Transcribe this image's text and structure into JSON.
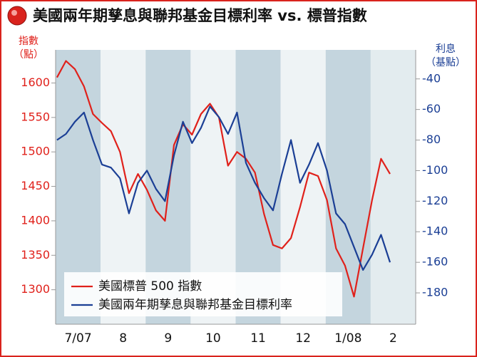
{
  "chart_data": {
    "type": "line",
    "title": "美國兩年期孳息與聯邦基金目標利率 vs. 標普指數",
    "y_label": [
      "指數",
      "（點）"
    ],
    "y2_label": [
      "利息",
      "（基點）"
    ],
    "categories": [
      "7/07",
      "8",
      "9",
      "10",
      "11",
      "12",
      "1/08",
      "2"
    ],
    "xlim": [
      0,
      8
    ],
    "x": [
      0.03,
      0.23,
      0.43,
      0.63,
      0.83,
      1.03,
      1.23,
      1.43,
      1.63,
      1.83,
      2.03,
      2.23,
      2.43,
      2.63,
      2.83,
      3.03,
      3.23,
      3.43,
      3.63,
      3.83,
      4.03,
      4.23,
      4.43,
      4.63,
      4.83,
      5.03,
      5.23,
      5.43,
      5.63,
      5.83,
      6.03,
      6.23,
      6.43,
      6.63,
      6.83,
      7.03,
      7.23,
      7.43
    ],
    "series": [
      {
        "name": "美國標普 500 指數",
        "color": "#e0211b",
        "axis": "y",
        "values": [
          1608,
          1632,
          1620,
          1595,
          1555,
          1542,
          1530,
          1500,
          1440,
          1468,
          1445,
          1415,
          1400,
          1510,
          1540,
          1525,
          1555,
          1570,
          1550,
          1480,
          1500,
          1490,
          1470,
          1410,
          1365,
          1360,
          1375,
          1420,
          1470,
          1465,
          1430,
          1360,
          1335,
          1290,
          1360,
          1430,
          1490,
          1468
        ]
      },
      {
        "name": "美國兩年期孳息與聯邦基金目標利率",
        "color": "#1b3f95",
        "axis": "y2",
        "values": [
          -80,
          -76,
          -68,
          -62,
          -80,
          -96,
          -98,
          -105,
          -128,
          -108,
          -100,
          -112,
          -120,
          -90,
          -68,
          -82,
          -72,
          -58,
          -65,
          -76,
          -62,
          -95,
          -108,
          -118,
          -126,
          -102,
          -80,
          -108,
          -96,
          -82,
          -100,
          -128,
          -135,
          -150,
          -165,
          -155,
          -142,
          -160
        ]
      }
    ],
    "ylim": [
      1250,
      1648
    ],
    "yticks": [
      1300,
      1350,
      1400,
      1450,
      1500,
      1550,
      1600
    ],
    "y2lim": [
      -200.5,
      -21
    ],
    "y2ticks": [
      -180,
      -160,
      -140,
      -120,
      -100,
      -80,
      -60,
      -40
    ]
  }
}
